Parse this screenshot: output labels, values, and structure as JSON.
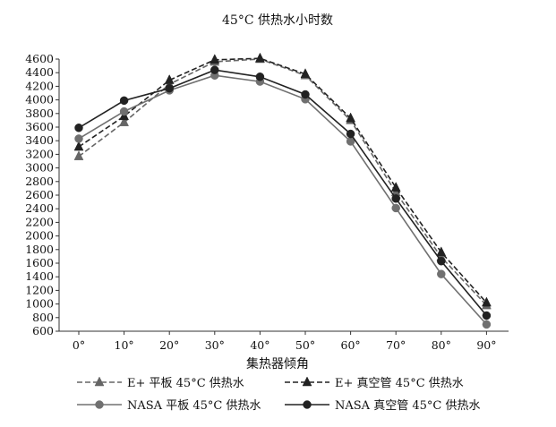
{
  "chart_data": {
    "type": "line",
    "title": "45°C 供热水小时数",
    "xlabel": "集热器倾角",
    "ylabel": "",
    "categories": [
      "0°",
      "10°",
      "20°",
      "30°",
      "40°",
      "50°",
      "60°",
      "70°",
      "80°",
      "90°"
    ],
    "x": [
      0,
      10,
      20,
      30,
      40,
      50,
      60,
      70,
      80,
      90
    ],
    "ylim": [
      600,
      4600
    ],
    "yticks": [
      600,
      800,
      1000,
      1200,
      1400,
      1600,
      1800,
      2000,
      2200,
      2400,
      2600,
      2800,
      3000,
      3200,
      3400,
      3600,
      3800,
      4000,
      4200,
      4400,
      4600
    ],
    "grid": false,
    "legend_position": "bottom",
    "series": [
      {
        "name": "E+ 平板 45°C 供热水",
        "color": "#666666",
        "dash": "dashed",
        "marker": "triangle",
        "values": [
          3170,
          3670,
          4230,
          4560,
          4600,
          4360,
          3700,
          2640,
          1690,
          980
        ]
      },
      {
        "name": "E+ 真空管 45°C 供热水",
        "color": "#222222",
        "dash": "dashed",
        "marker": "triangle",
        "values": [
          3310,
          3760,
          4290,
          4590,
          4610,
          4380,
          3730,
          2710,
          1760,
          1020
        ]
      },
      {
        "name": "NASA 平板 45°C 供热水",
        "color": "#707070",
        "dash": "solid",
        "marker": "circle",
        "values": [
          3430,
          3830,
          4140,
          4360,
          4270,
          4010,
          3390,
          2410,
          1440,
          700
        ]
      },
      {
        "name": "NASA 真空管 45°C 供热水",
        "color": "#222222",
        "dash": "solid",
        "marker": "circle",
        "values": [
          3590,
          3990,
          4170,
          4440,
          4340,
          4080,
          3500,
          2550,
          1630,
          830
        ]
      }
    ]
  }
}
